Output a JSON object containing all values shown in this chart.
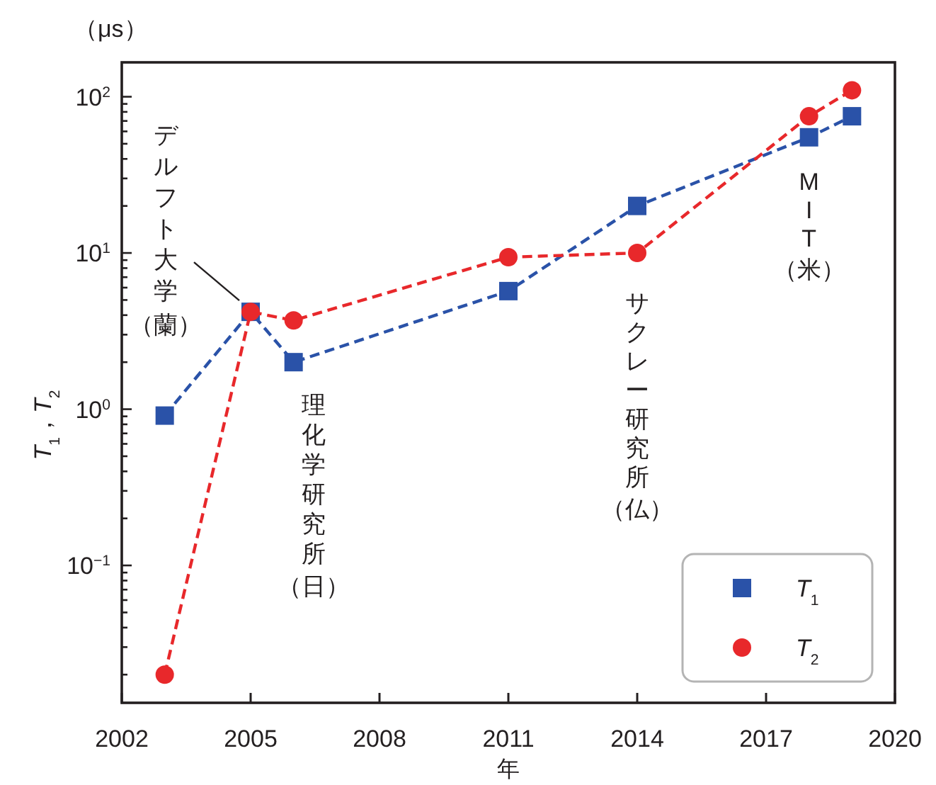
{
  "chart_data": {
    "type": "line",
    "xlabel": "年",
    "ylabel": "*T*$_{1}$，*T*$_{2}$",
    "log": "y",
    "line_style": "dashed",
    "legend": "bottom right",
    "xlim": [
      2002,
      2020
    ],
    "xticks": [
      2002,
      2005,
      2008,
      2011,
      2014,
      2017,
      2020
    ],
    "ylim": [
      0.0132,
      166
    ],
    "yticks": [
      {
        "value": 0.02,
        "label": null
      },
      {
        "value": 0.03,
        "label": null
      },
      {
        "value": 0.04,
        "label": null
      },
      {
        "value": 0.05,
        "label": null
      },
      {
        "value": 0.06,
        "label": null
      },
      {
        "value": 0.07,
        "label": null
      },
      {
        "value": 0.08,
        "label": null
      },
      {
        "value": 0.09,
        "label": null
      },
      {
        "value": 0.1,
        "label": "10$^{−1}$"
      },
      {
        "value": 0.2,
        "label": null
      },
      {
        "value": 0.3,
        "label": null
      },
      {
        "value": 0.4,
        "label": null
      },
      {
        "value": 0.5,
        "label": null
      },
      {
        "value": 0.6,
        "label": null
      },
      {
        "value": 0.7,
        "label": null
      },
      {
        "value": 0.8,
        "label": null
      },
      {
        "value": 0.9,
        "label": null
      },
      {
        "value": 1,
        "label": "10$^{0}$"
      },
      {
        "value": 2,
        "label": null
      },
      {
        "value": 3,
        "label": null
      },
      {
        "value": 4,
        "label": null
      },
      {
        "value": 5,
        "label": null
      },
      {
        "value": 6,
        "label": null
      },
      {
        "value": 7,
        "label": null
      },
      {
        "value": 8,
        "label": null
      },
      {
        "value": 9,
        "label": null
      },
      {
        "value": 10,
        "label": "10$^{1}$"
      },
      {
        "value": 20,
        "label": null
      },
      {
        "value": 30,
        "label": null
      },
      {
        "value": 40,
        "label": null
      },
      {
        "value": 50,
        "label": null
      },
      {
        "value": 60,
        "label": null
      },
      {
        "value": 70,
        "label": null
      },
      {
        "value": 80,
        "label": null
      },
      {
        "value": 90,
        "label": null
      },
      {
        "value": 100,
        "label": "10$^{2}$"
      }
    ],
    "x": [
      2003,
      2005,
      2006,
      2011,
      2014,
      2018,
      2019
    ],
    "series": [
      {
        "name": "*T*$_{1}$",
        "color": "#2a52a8",
        "marker": "square",
        "values": [
          0.91,
          4.2,
          2.0,
          5.7,
          20,
          55,
          75
        ]
      },
      {
        "name": "*T*$_{2}$",
        "color": "#e8282b",
        "marker": "circle",
        "values": [
          0.02,
          4.2,
          3.7,
          9.4,
          10,
          75,
          110
        ]
      }
    ],
    "annotations": [
      "（μs）",
      {
        "text": "デルフト大学（蘭）",
        "x": 2005,
        "y": 4.2
      },
      {
        "text": "理化学研究所（日）",
        "x": 2006,
        "y": 2.0
      },
      {
        "text": "サクレー研究所（仏）",
        "x": 2014,
        "y": 10
      },
      {
        "text": "MIT（米）",
        "x": 2018,
        "y": 55
      }
    ]
  }
}
